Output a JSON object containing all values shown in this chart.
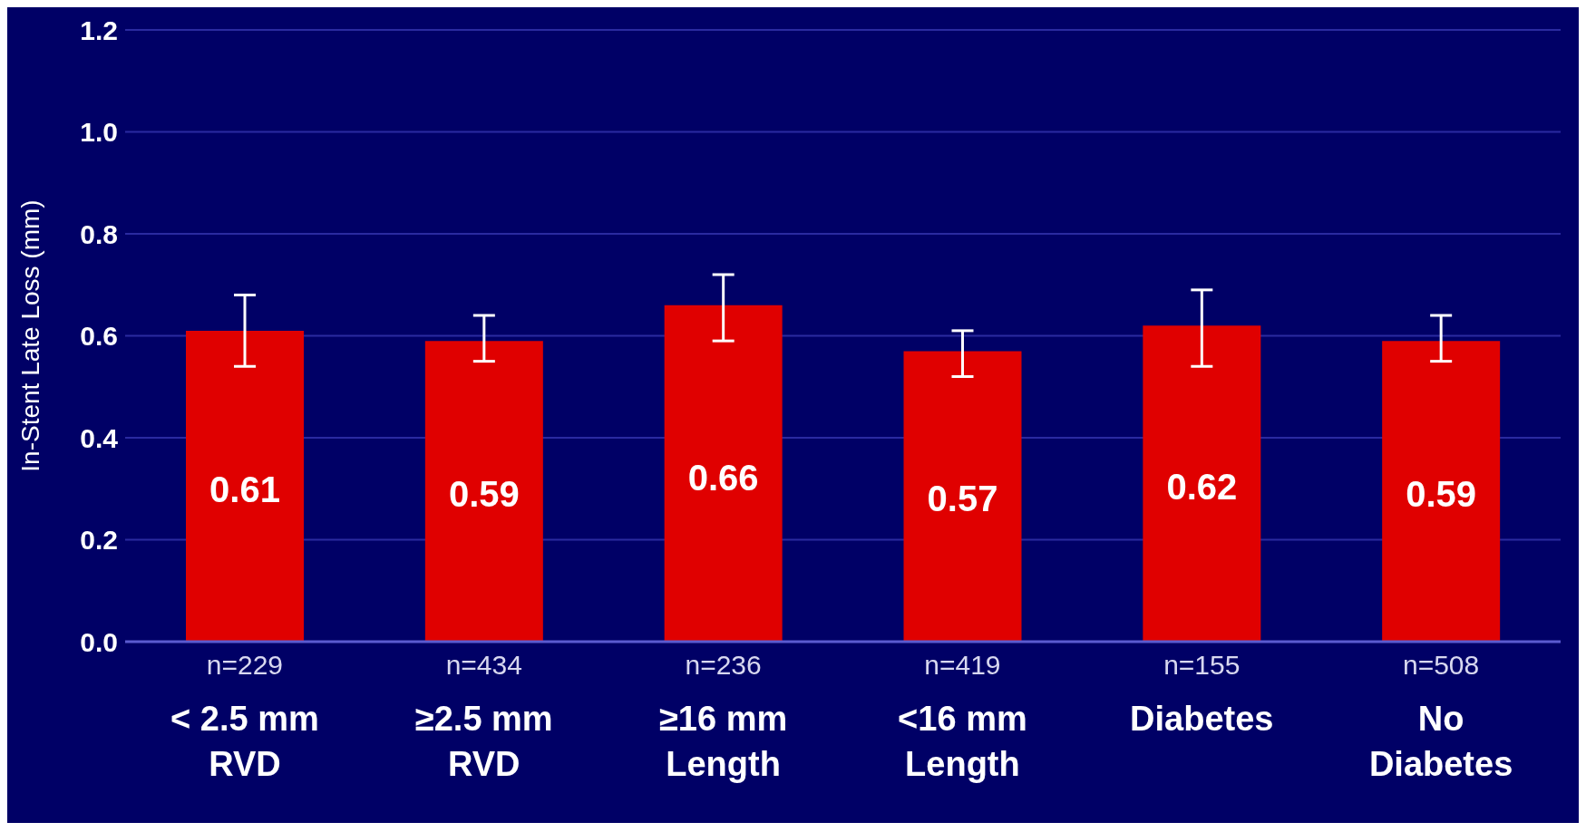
{
  "chart_data": {
    "type": "bar",
    "ylabel": "In-Stent Late Loss (mm)",
    "categories": [
      "n=229\n< 2.5 mm\nRVD",
      "n=434\n≥2.5 mm\nRVD",
      "n=236\n≥16 mm\nLength",
      "n=419\n<16 mm\nLength",
      "n=155\nDiabetes",
      "n=508\nNo\nDiabetes"
    ],
    "values": [
      0.61,
      0.59,
      0.66,
      0.57,
      0.62,
      0.59
    ],
    "errors": [
      [
        0.54,
        0.68
      ],
      [
        0.55,
        0.64
      ],
      [
        0.59,
        0.72
      ],
      [
        0.52,
        0.61
      ],
      [
        0.54,
        0.69
      ],
      [
        0.55,
        0.64
      ]
    ],
    "color": "#e00000",
    "data_labels": true,
    "grid": "y",
    "legend": false,
    "ylim": [
      0,
      1.2
    ],
    "yticks": [
      {
        "value": 0,
        "label": "0.0"
      },
      {
        "value": 0.2,
        "label": "0.2"
      },
      {
        "value": 0.4,
        "label": "0.4"
      },
      {
        "value": 0.6,
        "label": "0.6"
      },
      {
        "value": 0.8,
        "label": "0.8"
      },
      {
        "value": 1,
        "label": "1.0"
      },
      {
        "value": 1.2,
        "label": "1.2"
      }
    ]
  }
}
